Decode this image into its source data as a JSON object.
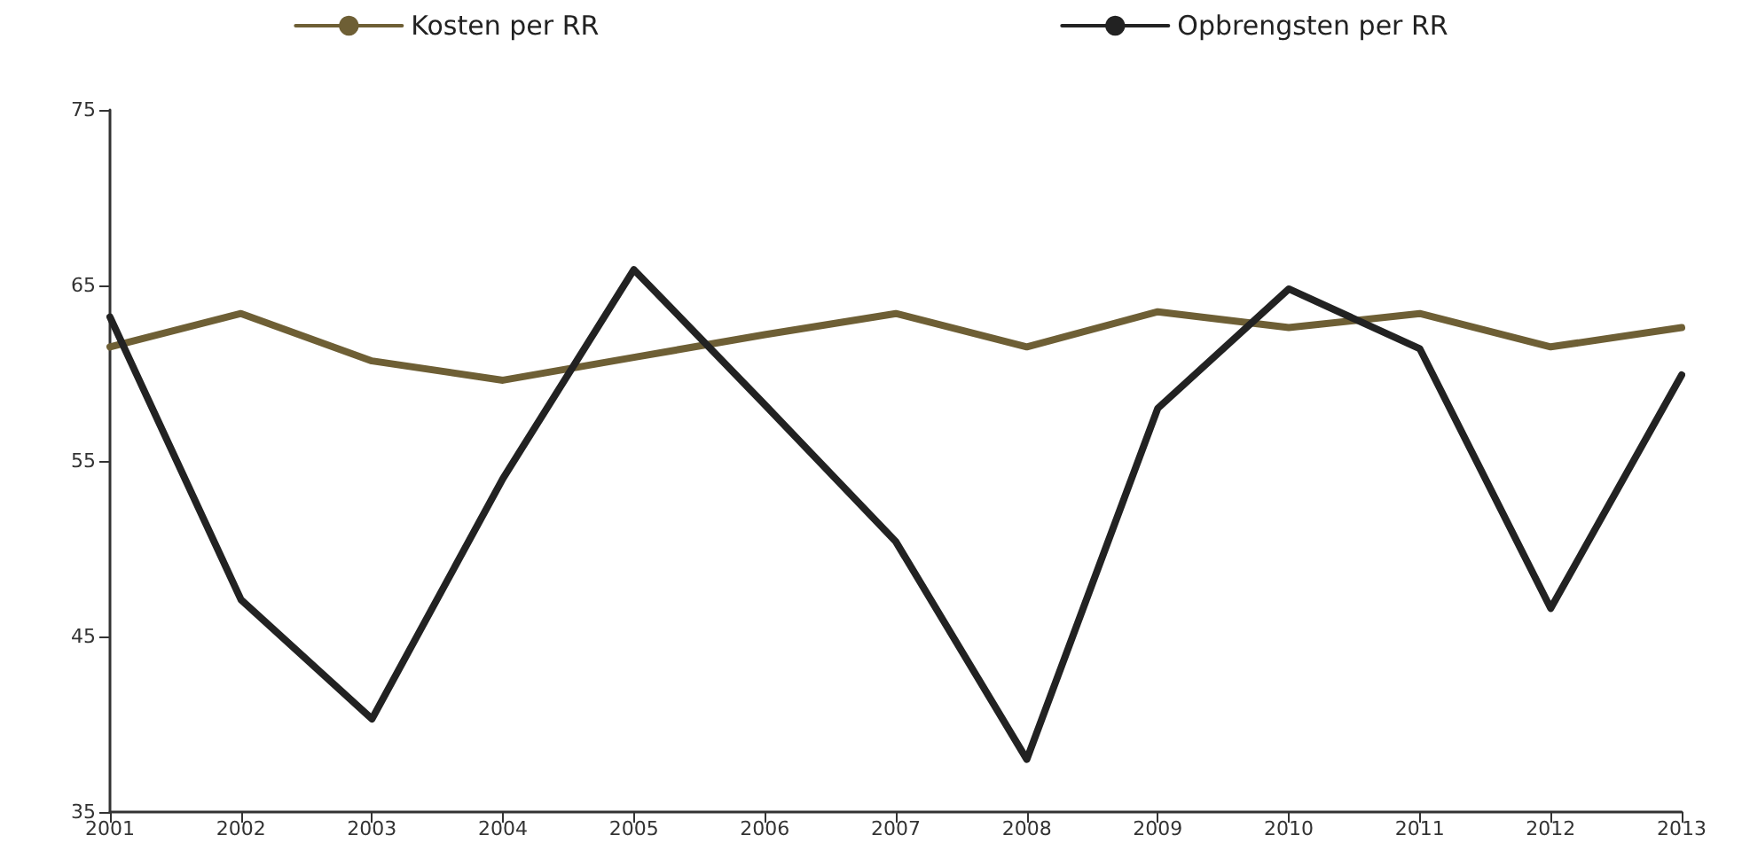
{
  "chart_data": {
    "type": "line",
    "categories": [
      "2001",
      "2002",
      "2003",
      "2004",
      "2005",
      "2006",
      "2007",
      "2008",
      "2009",
      "2010",
      "2011",
      "2012",
      "2013"
    ],
    "series": [
      {
        "name": "Kosten per RR",
        "color": "#6e5f35",
        "values": [
          61.5,
          63.4,
          60.7,
          59.6,
          60.9,
          62.2,
          63.4,
          61.5,
          63.5,
          62.6,
          63.4,
          61.5,
          62.6
        ]
      },
      {
        "name": "Opbrengsten per RR",
        "color": "#222222",
        "values": [
          63.2,
          47.1,
          40.3,
          54.0,
          65.9,
          58.2,
          50.4,
          38.0,
          58.0,
          64.8,
          61.4,
          46.6,
          59.9
        ]
      }
    ],
    "ylim": [
      35,
      75
    ],
    "yticks": [
      35,
      45,
      55,
      65,
      75
    ],
    "grid": false,
    "legend": "top",
    "marker": "none",
    "line_style": "solid"
  }
}
